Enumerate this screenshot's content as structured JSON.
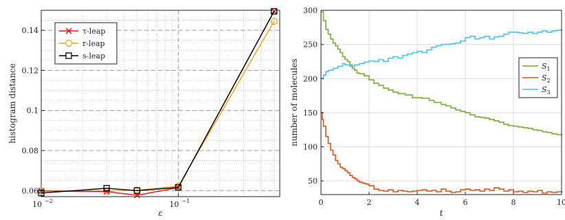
{
  "chart_data": [
    {
      "type": "line",
      "xscale": "log",
      "xlabel": "ε",
      "ylabel": "histogram distance",
      "xlim": [
        0.01,
        0.55
      ],
      "ylim": [
        0.057,
        0.15
      ],
      "x_ticks": [
        0.01,
        0.1
      ],
      "x_tick_labels": [
        "10",
        "10"
      ],
      "x_tick_exponents": [
        "−2",
        "−1"
      ],
      "y_ticks": [
        0.06,
        0.08,
        0.1,
        0.12,
        0.14
      ],
      "y_tick_labels": [
        "0.06",
        "0.08",
        "0.1",
        "0.12",
        "0.14"
      ],
      "grid": true,
      "legend_position": "top-left",
      "series": [
        {
          "name": "τ-leap",
          "color": "#e8141b",
          "marker": "x",
          "x": [
            0.01,
            0.03,
            0.05,
            0.1,
            0.5
          ],
          "y": [
            0.0598,
            0.0595,
            0.0577,
            0.0615,
            0.1495
          ]
        },
        {
          "name": "r-leap",
          "color": "#e8a614",
          "marker": "circle",
          "x": [
            0.01,
            0.03,
            0.05,
            0.1,
            0.5
          ],
          "y": [
            0.06,
            0.0598,
            0.0602,
            0.0622,
            0.1445
          ]
        },
        {
          "name": "s-leap",
          "color": "#000000",
          "marker": "square",
          "x": [
            0.01,
            0.03,
            0.05,
            0.1,
            0.5
          ],
          "y": [
            0.0588,
            0.0612,
            0.06,
            0.0616,
            0.1495
          ]
        }
      ]
    },
    {
      "type": "line",
      "xlabel": "t",
      "ylabel": "number of molecules",
      "xlim": [
        0,
        10
      ],
      "ylim": [
        30,
        300
      ],
      "x_ticks": [
        0,
        2,
        4,
        6,
        8,
        10
      ],
      "y_ticks": [
        50,
        100,
        150,
        200,
        250,
        300
      ],
      "grid": true,
      "legend_position": "right",
      "series": [
        {
          "name": "S",
          "subscript": "1",
          "color": "#77ac30",
          "step": true,
          "x": [
            0,
            0.1,
            0.2,
            0.3,
            0.4,
            0.5,
            0.6,
            0.7,
            0.8,
            0.9,
            1.0,
            1.1,
            1.2,
            1.3,
            1.4,
            1.5,
            1.6,
            1.8,
            2.0,
            2.2,
            2.4,
            2.6,
            2.8,
            3.0,
            3.2,
            3.5,
            3.8,
            4.0,
            4.2,
            4.5,
            4.7,
            5.0,
            5.2,
            5.4,
            5.6,
            5.8,
            6.0,
            6.2,
            6.4,
            6.6,
            6.8,
            7.0,
            7.2,
            7.4,
            7.6,
            7.8,
            8.0,
            8.2,
            8.4,
            8.6,
            8.8,
            9.0,
            9.2,
            9.4,
            9.6,
            9.8,
            10.0
          ],
          "y": [
            298,
            285,
            272,
            265,
            258,
            252,
            248,
            243,
            238,
            232,
            228,
            225,
            220,
            215,
            212,
            208,
            207,
            204,
            198,
            193,
            190,
            186,
            183,
            180,
            178,
            176,
            172,
            172,
            171,
            168,
            165,
            162,
            160,
            157,
            154,
            152,
            150,
            147,
            144,
            143,
            142,
            140,
            138,
            136,
            133,
            131,
            130,
            129,
            128,
            127,
            125,
            124,
            122,
            121,
            119,
            118,
            117
          ]
        },
        {
          "name": "S",
          "subscript": "2",
          "color": "#d95319",
          "step": true,
          "x": [
            0,
            0.05,
            0.1,
            0.2,
            0.3,
            0.4,
            0.5,
            0.6,
            0.7,
            0.8,
            0.9,
            1.0,
            1.1,
            1.2,
            1.3,
            1.4,
            1.5,
            1.6,
            1.7,
            1.8,
            1.9,
            2.0,
            2.2,
            2.4,
            2.6,
            2.8,
            3.0,
            3.2,
            3.4,
            3.6,
            3.8,
            4.0,
            4.2,
            4.4,
            4.6,
            4.8,
            5.0,
            5.2,
            5.4,
            5.6,
            5.8,
            6.0,
            6.2,
            6.4,
            6.6,
            6.8,
            7.0,
            7.2,
            7.4,
            7.6,
            7.8,
            8.0,
            8.2,
            8.4,
            8.6,
            8.8,
            9.0,
            9.2,
            9.4,
            9.6,
            9.8,
            10.0
          ],
          "y": [
            150,
            140,
            130,
            115,
            105,
            95,
            88,
            80,
            75,
            70,
            68,
            65,
            62,
            58,
            55,
            53,
            50,
            48,
            47,
            46,
            45,
            43,
            38,
            36,
            35,
            37,
            34,
            36,
            35,
            34,
            35,
            36,
            37,
            35,
            36,
            34,
            38,
            35,
            33,
            34,
            37,
            38,
            36,
            37,
            35,
            38,
            36,
            40,
            38,
            35,
            37,
            34,
            35,
            33,
            35,
            34,
            36,
            32,
            34,
            33,
            34,
            33
          ]
        },
        {
          "name": "S",
          "subscript": "3",
          "color": "#4dbeee",
          "step": true,
          "x": [
            0,
            0.1,
            0.2,
            0.3,
            0.5,
            0.7,
            0.9,
            1.0,
            1.2,
            1.4,
            1.6,
            1.8,
            2.0,
            2.2,
            2.4,
            2.6,
            2.8,
            3.0,
            3.2,
            3.4,
            3.6,
            3.8,
            4.0,
            4.2,
            4.4,
            4.6,
            4.8,
            5.0,
            5.2,
            5.4,
            5.6,
            5.8,
            6.0,
            6.2,
            6.4,
            6.6,
            6.8,
            7.0,
            7.2,
            7.4,
            7.6,
            7.8,
            8.0,
            8.2,
            8.4,
            8.6,
            8.8,
            9.0,
            9.2,
            9.4,
            9.6,
            9.8,
            10.0
          ],
          "y": [
            200,
            205,
            210,
            212,
            215,
            218,
            222,
            220,
            218,
            220,
            222,
            224,
            226,
            225,
            228,
            225,
            230,
            232,
            230,
            234,
            236,
            238,
            240,
            238,
            242,
            246,
            248,
            250,
            250,
            251,
            252,
            255,
            260,
            262,
            258,
            260,
            262,
            258,
            261,
            262,
            265,
            268,
            268,
            267,
            266,
            268,
            266,
            268,
            270,
            268,
            270,
            271,
            272
          ]
        }
      ]
    }
  ]
}
